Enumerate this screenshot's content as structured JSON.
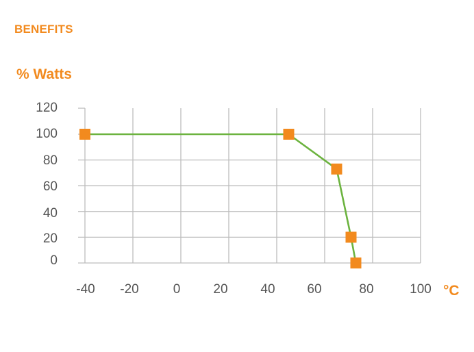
{
  "page": {
    "heading": "BENEFITS"
  },
  "colors": {
    "accent": "#f28a1e",
    "line": "#6cb33f",
    "grid": "#bdbdbd",
    "tick_text": "#555555"
  },
  "chart_data": {
    "type": "line",
    "title": "",
    "ylabel": "% Watts",
    "xlabel": "°C",
    "x_ticks": [
      -40,
      -20,
      0,
      20,
      40,
      60,
      80,
      100
    ],
    "y_ticks": [
      120,
      100,
      80,
      60,
      40,
      20,
      0
    ],
    "xlim": [
      -40,
      100
    ],
    "ylim": [
      0,
      120
    ],
    "grid": true,
    "legend": "none",
    "series": [
      {
        "x": [
          -40,
          45,
          65,
          71,
          73
        ],
        "y": [
          100,
          100,
          73,
          20,
          0
        ]
      }
    ]
  }
}
